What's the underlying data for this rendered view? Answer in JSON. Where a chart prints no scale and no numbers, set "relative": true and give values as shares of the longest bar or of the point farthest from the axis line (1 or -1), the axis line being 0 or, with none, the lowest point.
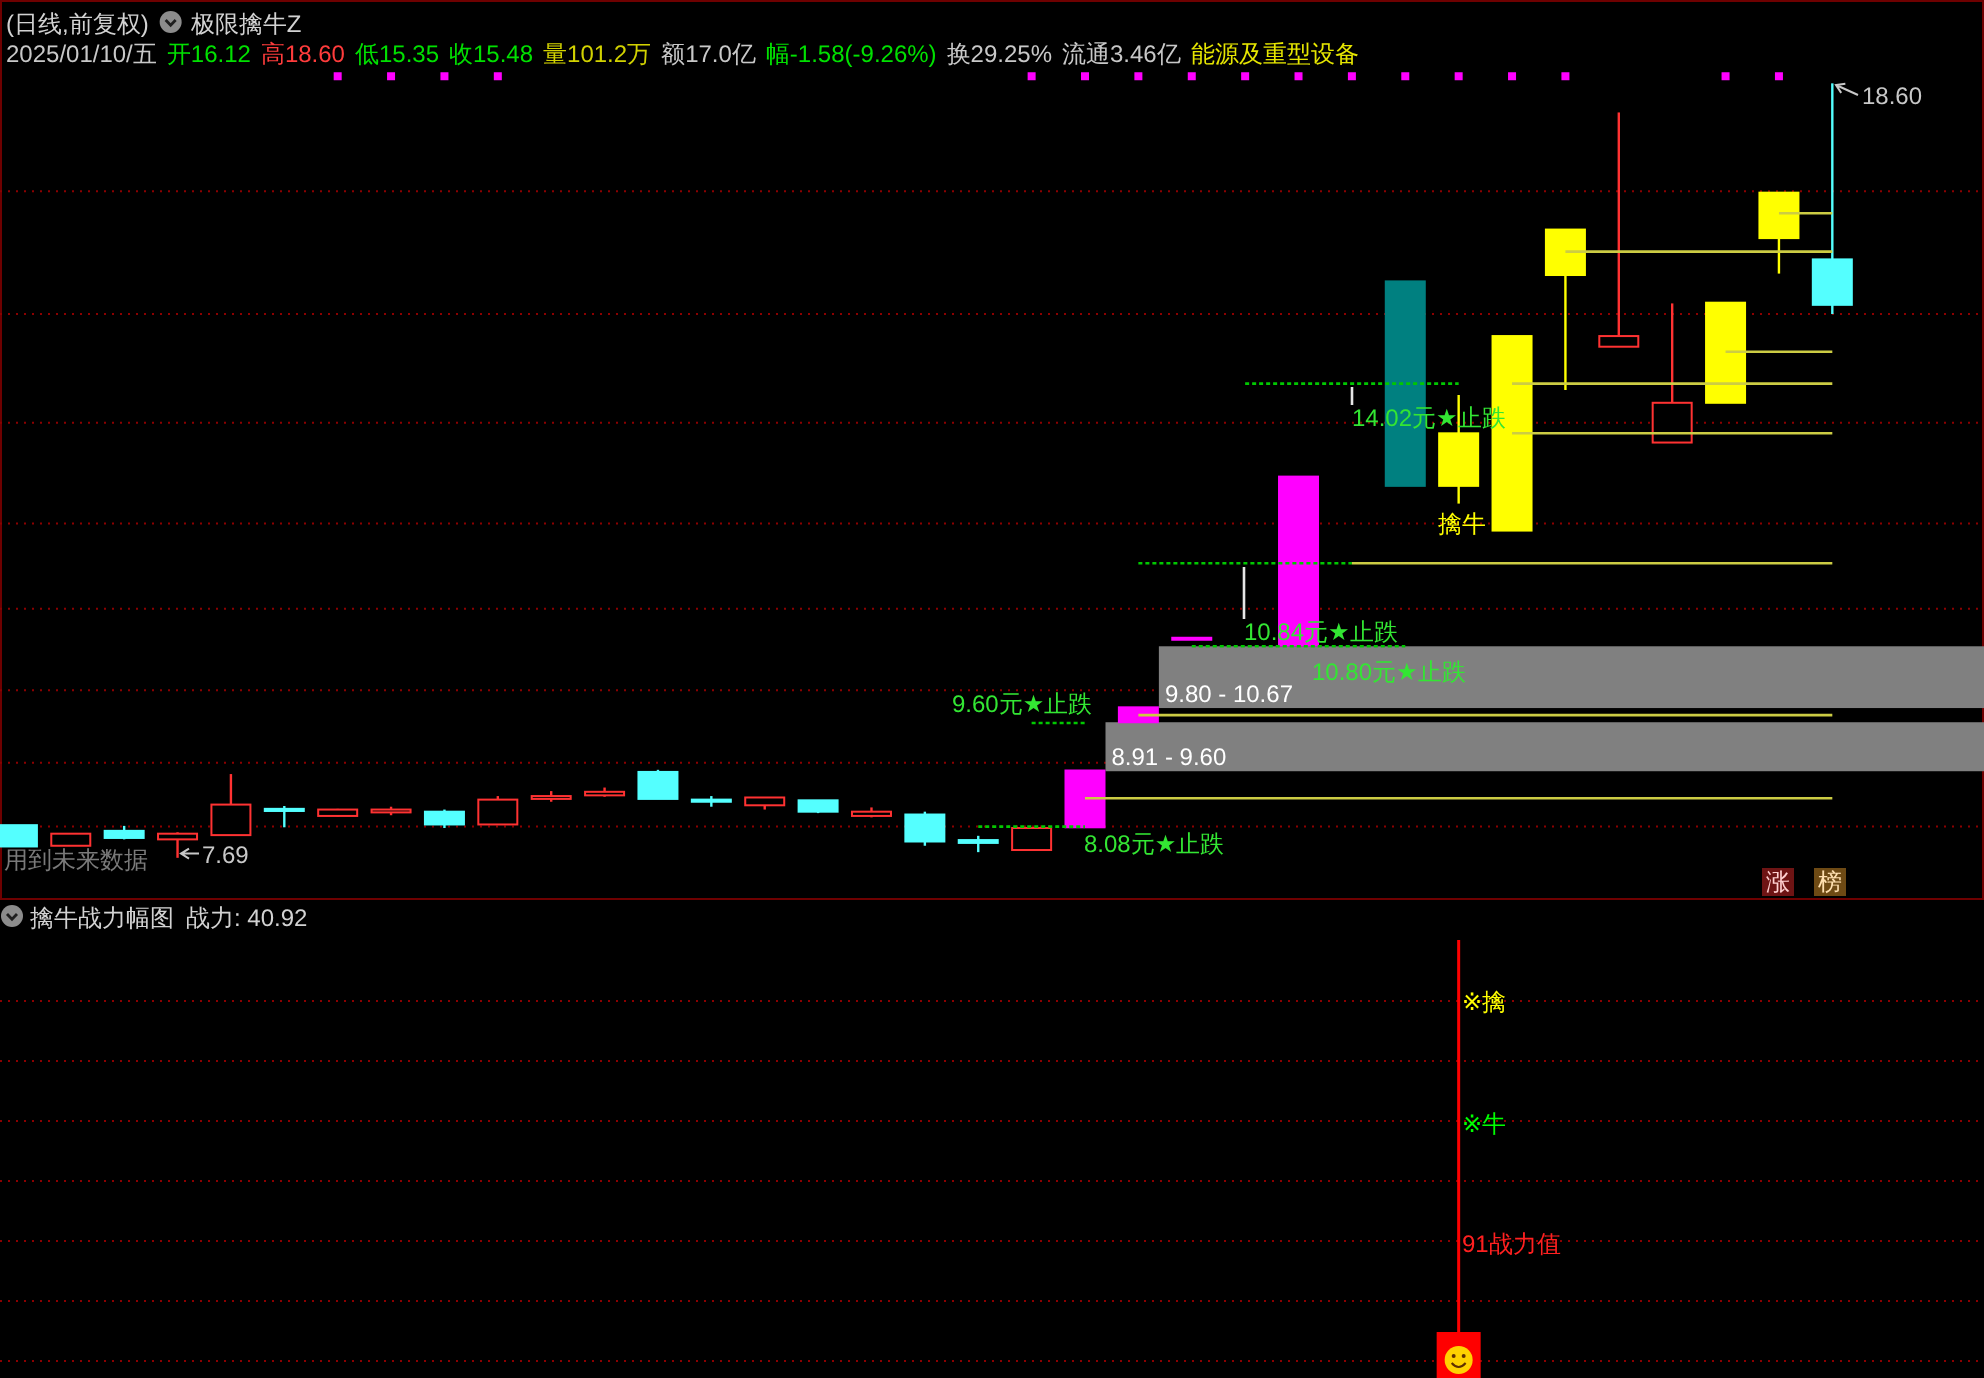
{
  "chart_data": [
    {
      "type": "candlestick",
      "title": "(日线,前复权)",
      "subtitle": "极限擒牛Z",
      "categories": [
        null,
        null,
        null,
        null,
        null,
        null,
        null,
        null,
        null,
        null,
        null,
        null,
        null,
        null,
        null,
        null,
        null,
        null,
        null,
        null,
        null,
        null,
        null,
        null,
        null,
        null,
        null,
        null,
        null,
        null,
        null,
        null,
        null,
        null,
        null
      ],
      "ohlc": [
        [
          8.15,
          8.15,
          7.85,
          7.85
        ],
        [
          7.86,
          8.03,
          7.86,
          8.03
        ],
        [
          8.07,
          8.14,
          7.95,
          7.97
        ],
        [
          7.95,
          8.05,
          7.69,
          8.03
        ],
        [
          8.01,
          8.87,
          8.01,
          8.44
        ],
        [
          8.38,
          8.42,
          8.12,
          8.35
        ],
        [
          8.28,
          8.38,
          8.27,
          8.37
        ],
        [
          8.33,
          8.41,
          8.29,
          8.37
        ],
        [
          8.34,
          8.37,
          8.11,
          8.16
        ],
        [
          8.16,
          8.56,
          8.16,
          8.51
        ],
        [
          8.52,
          8.63,
          8.48,
          8.56
        ],
        [
          8.57,
          8.68,
          8.55,
          8.62
        ],
        [
          8.9,
          8.93,
          8.52,
          8.52
        ],
        [
          8.51,
          8.56,
          8.41,
          8.48
        ],
        [
          8.43,
          8.54,
          8.37,
          8.54
        ],
        [
          8.5,
          8.5,
          8.32,
          8.34
        ],
        [
          8.28,
          8.4,
          8.26,
          8.34
        ],
        [
          8.3,
          8.34,
          7.86,
          7.92
        ],
        [
          7.94,
          8.0,
          7.77,
          7.9
        ],
        [
          7.8,
          8.11,
          7.8,
          8.11
        ],
        [
          8.12,
          8.92,
          8.12,
          8.92
        ],
        [
          9.6,
          9.81,
          9.6,
          9.81
        ],
        [
          10.79,
          10.79,
          10.79,
          10.79
        ],
        null,
        [
          10.68,
          13.06,
          10.68,
          13.06
        ],
        null,
        [
          15.81,
          15.81,
          12.93,
          12.93
        ],
        [
          12.93,
          14.21,
          12.68,
          13.67
        ],
        [
          12.3,
          15.04,
          12.3,
          15.04
        ],
        [
          15.9,
          16.54,
          14.28,
          16.54
        ],
        [
          14.89,
          18.19,
          14.89,
          15.04
        ],
        [
          13.54,
          15.5,
          13.54,
          14.1
        ],
        [
          14.1,
          15.51,
          14.1,
          15.51
        ],
        [
          16.42,
          17.06,
          15.92,
          17.06
        ],
        [
          16.12,
          18.6,
          15.35,
          15.48
        ]
      ],
      "color": "#ff3232",
      "colors": [
        "#54ffff",
        "#ff3232",
        "#54ffff",
        "#ff3232",
        "#ff3232",
        "#54ffff",
        "#ff3232",
        "#ff3232",
        "#54ffff",
        "#ff3232",
        "#ff3232",
        "#ff3232",
        "#54ffff",
        "#54ffff",
        "#ff3232",
        "#54ffff",
        "#ff3232",
        "#54ffff",
        "#54ffff",
        "#ff3232",
        "#ff00ff",
        "#ff00ff",
        "#ff00ff",
        null,
        "#ff00ff",
        null,
        "#008080",
        "#ffff00",
        "#ffff00",
        "#ffff00",
        "#ff3232",
        "#ff3232",
        "#ffff00",
        "#ffff00",
        "#54ffff"
      ],
      "series": [
        {
          "type": "line",
          "color": "#00c800",
          "line_style": "dotted",
          "values": [
            null,
            null,
            null,
            null,
            null,
            null,
            null,
            null,
            null,
            null,
            null,
            null,
            null,
            null,
            null,
            null,
            null,
            null,
            8.13,
            8.13,
            8.13,
            null,
            null,
            null,
            null,
            null,
            null,
            null,
            null,
            null,
            null,
            null,
            null,
            null,
            null
          ]
        },
        {
          "type": "line",
          "color": "#00c800",
          "line_style": "dotted",
          "values": [
            null,
            null,
            null,
            null,
            null,
            null,
            null,
            null,
            null,
            null,
            null,
            null,
            null,
            null,
            null,
            null,
            null,
            null,
            null,
            9.59,
            9.59,
            null,
            null,
            null,
            null,
            null,
            null,
            null,
            null,
            null,
            null,
            null,
            null,
            null,
            null
          ]
        },
        {
          "type": "line",
          "color": "#00c800",
          "line_style": "dotted",
          "values": [
            null,
            null,
            null,
            null,
            null,
            null,
            null,
            null,
            null,
            null,
            null,
            null,
            null,
            null,
            null,
            null,
            null,
            null,
            null,
            null,
            null,
            null,
            10.67,
            10.67,
            10.67,
            10.67,
            10.67,
            null,
            null,
            null,
            null,
            null,
            null,
            null,
            null
          ]
        },
        {
          "type": "line",
          "color": "#00c800",
          "line_style": "dotted",
          "values": [
            null,
            null,
            null,
            null,
            null,
            null,
            null,
            null,
            null,
            null,
            null,
            null,
            null,
            null,
            null,
            null,
            null,
            null,
            null,
            null,
            null,
            11.84,
            11.84,
            11.84,
            11.84,
            11.84,
            null,
            null,
            null,
            null,
            null,
            null,
            null,
            null,
            null
          ]
        },
        {
          "type": "line",
          "color": "#00c800",
          "line_style": "dotted",
          "values": [
            null,
            null,
            null,
            null,
            null,
            null,
            null,
            null,
            null,
            null,
            null,
            null,
            null,
            null,
            null,
            null,
            null,
            null,
            null,
            null,
            null,
            null,
            null,
            14.37,
            14.37,
            14.37,
            14.37,
            14.37,
            null,
            null,
            null,
            null,
            null,
            null,
            null
          ]
        },
        {
          "type": "line",
          "color": "#cccc44",
          "values": [
            null,
            null,
            null,
            null,
            null,
            null,
            null,
            null,
            null,
            null,
            null,
            null,
            null,
            null,
            null,
            null,
            null,
            null,
            null,
            null,
            8.53,
            8.53,
            8.53,
            8.53,
            8.53,
            8.53,
            8.53,
            8.53,
            8.53,
            8.53,
            8.53,
            8.53,
            8.53,
            8.53,
            8.53
          ]
        },
        {
          "type": "line",
          "color": "#cccc44",
          "values": [
            null,
            null,
            null,
            null,
            null,
            null,
            null,
            null,
            null,
            null,
            null,
            null,
            null,
            null,
            null,
            null,
            null,
            null,
            null,
            null,
            null,
            9.7,
            9.7,
            9.7,
            9.7,
            9.7,
            9.7,
            9.7,
            9.7,
            9.7,
            9.7,
            9.7,
            9.7,
            9.7,
            9.7
          ]
        },
        {
          "type": "line",
          "color": "#cccc44",
          "values": [
            null,
            null,
            null,
            null,
            null,
            null,
            null,
            null,
            null,
            null,
            null,
            null,
            null,
            null,
            null,
            null,
            null,
            null,
            null,
            null,
            null,
            null,
            null,
            null,
            null,
            11.84,
            11.84,
            11.84,
            11.84,
            11.84,
            11.84,
            11.84,
            11.84,
            11.84,
            11.84
          ]
        },
        {
          "type": "line",
          "color": "#cccc44",
          "values": [
            null,
            null,
            null,
            null,
            null,
            null,
            null,
            null,
            null,
            null,
            null,
            null,
            null,
            null,
            null,
            null,
            null,
            null,
            null,
            null,
            null,
            null,
            null,
            null,
            null,
            null,
            null,
            null,
            13.67,
            13.67,
            13.67,
            13.67,
            13.67,
            13.67,
            13.67
          ]
        },
        {
          "type": "line",
          "color": "#cccc44",
          "values": [
            null,
            null,
            null,
            null,
            null,
            null,
            null,
            null,
            null,
            null,
            null,
            null,
            null,
            null,
            null,
            null,
            null,
            null,
            null,
            null,
            null,
            null,
            null,
            null,
            null,
            null,
            null,
            null,
            14.37,
            14.37,
            14.37,
            14.37,
            14.37,
            14.37,
            14.37
          ]
        },
        {
          "type": "line",
          "color": "#cccc44",
          "values": [
            null,
            null,
            null,
            null,
            null,
            null,
            null,
            null,
            null,
            null,
            null,
            null,
            null,
            null,
            null,
            null,
            null,
            null,
            null,
            null,
            null,
            null,
            null,
            null,
            null,
            null,
            null,
            null,
            null,
            16.23,
            16.23,
            16.23,
            16.23,
            16.23,
            16.23
          ]
        },
        {
          "type": "line",
          "color": "#cccc44",
          "values": [
            null,
            null,
            null,
            null,
            null,
            null,
            null,
            null,
            null,
            null,
            null,
            null,
            null,
            null,
            null,
            null,
            null,
            null,
            null,
            null,
            null,
            null,
            null,
            null,
            null,
            null,
            null,
            null,
            null,
            null,
            null,
            null,
            14.82,
            14.82,
            14.82
          ]
        },
        {
          "type": "line",
          "color": "#cccc44",
          "values": [
            null,
            null,
            null,
            null,
            null,
            null,
            null,
            null,
            null,
            null,
            null,
            null,
            null,
            null,
            null,
            null,
            null,
            null,
            null,
            null,
            null,
            null,
            null,
            null,
            null,
            null,
            null,
            null,
            null,
            null,
            null,
            null,
            null,
            16.77,
            16.77
          ]
        },
        {
          "type": "scatter",
          "color": "#ff00ff",
          "marker": "square",
          "values": [
            null,
            null,
            null,
            null,
            null,
            null,
            18.7,
            18.7,
            18.7,
            18.7,
            null,
            null,
            null,
            null,
            null,
            null,
            null,
            null,
            null,
            18.7,
            18.7,
            18.7,
            18.7,
            18.7,
            18.7,
            18.7,
            18.7,
            18.7,
            18.7,
            18.7,
            null,
            null,
            18.7,
            18.7,
            null
          ]
        }
      ],
      "bands": [
        {
          "axis": "y",
          "from": 9.8,
          "to": 10.67,
          "label": "9.80 - 10.67",
          "color": "#808080"
        },
        {
          "axis": "y",
          "from": 8.91,
          "to": 9.6,
          "label": "8.91 - 9.60",
          "color": "#808080"
        }
      ],
      "ylim": [
        7.11,
        19.76
      ],
      "yticks": [
        {
          "value": 8.13,
          "label": null
        },
        {
          "value": 9.03,
          "label": null
        },
        {
          "value": 10.05,
          "label": null
        },
        {
          "value": 11.2,
          "label": null
        },
        {
          "value": 12.4,
          "label": null
        },
        {
          "value": 13.82,
          "label": null
        },
        {
          "value": 15.35,
          "label": null
        },
        {
          "value": 17.08,
          "label": null
        }
      ],
      "grid": "y",
      "annotations": [
        "2025/01/10/五",
        "开16.12",
        "高18.60",
        "低15.35",
        "收15.48",
        "量101.2万",
        "额17.0亿",
        "幅-1.58(-9.26%)",
        "换29.25%",
        "流通3.46亿",
        "能源及重型设备",
        "18.60",
        "7.69",
        "用到未来数据",
        "14.02元★止跌",
        "10.84元★止跌",
        "10.80元★止跌",
        "9.60元★止跌",
        "8.08元★止跌",
        "擒牛",
        "涨",
        "榜"
      ]
    },
    {
      "type": "bar",
      "title": "擒牛战力幅图",
      "subtitle": "战力: 40.92",
      "relative": true,
      "categories": [
        null,
        null,
        null,
        null,
        null,
        null,
        null,
        null,
        null,
        null,
        null,
        null,
        null,
        null,
        null,
        null,
        null,
        null,
        null,
        null,
        null,
        null,
        null,
        null,
        null,
        null,
        null,
        null,
        null,
        null,
        null,
        null,
        null,
        null,
        null
      ],
      "series": [
        {
          "color": "#ff0000",
          "values": [
            null,
            null,
            null,
            null,
            null,
            null,
            null,
            null,
            null,
            null,
            null,
            null,
            null,
            null,
            null,
            null,
            null,
            null,
            null,
            null,
            null,
            null,
            null,
            null,
            null,
            null,
            null,
            1,
            null,
            null,
            null,
            null,
            null,
            null,
            null
          ]
        },
        {
          "color": "#ff0000",
          "values": [
            null,
            null,
            null,
            null,
            null,
            null,
            null,
            null,
            null,
            null,
            null,
            null,
            null,
            null,
            null,
            null,
            null,
            null,
            null,
            null,
            null,
            null,
            null,
            null,
            null,
            null,
            null,
            0.105,
            null,
            null,
            null,
            null,
            null,
            null,
            null
          ]
        }
      ],
      "ref_lines": [
        {
          "axis": "y",
          "value": 0.861,
          "color": "#8c0000",
          "line_style": "dotted"
        },
        {
          "axis": "y",
          "value": 0.724,
          "color": "#8c0000",
          "line_style": "dotted"
        },
        {
          "axis": "y",
          "value": 0.587,
          "color": "#8c0000",
          "line_style": "dotted"
        },
        {
          "axis": "y",
          "value": 0.45,
          "color": "#8c0000",
          "line_style": "dotted"
        },
        {
          "axis": "y",
          "value": 0.313,
          "color": "#8c0000",
          "line_style": "dotted"
        },
        {
          "axis": "y",
          "value": 0.176,
          "color": "#8c0000",
          "line_style": "dotted"
        },
        {
          "axis": "y",
          "value": 0.039,
          "color": "#8c0000",
          "line_style": "dotted"
        }
      ],
      "annotations": [
        "※擒",
        "※牛",
        "91战力值"
      ]
    }
  ]
}
